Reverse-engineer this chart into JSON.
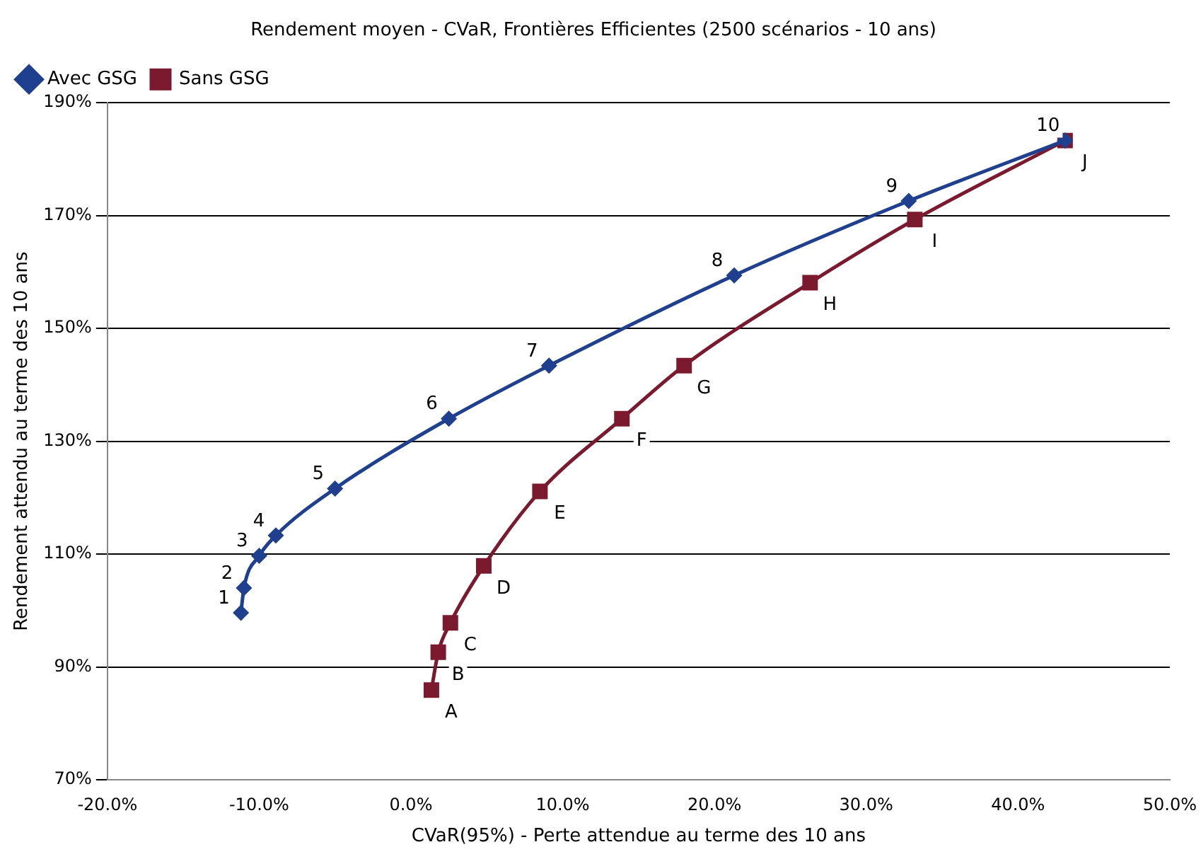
{
  "chart_data": {
    "type": "line",
    "title": "Rendement moyen - CVaR, Frontières Efficientes (2500 scénarios - 10 ans)",
    "xlabel": "CVaR(95%) - Perte attendue au terme des 10 ans",
    "ylabel": "Rendement attendu au terme des 10 ans",
    "xlim": [
      -20,
      50
    ],
    "xticks": [
      {
        "value": -20,
        "label": "-20.0%"
      },
      {
        "value": -10,
        "label": "-10.0%"
      },
      {
        "value": 0,
        "label": "0.0%"
      },
      {
        "value": 10,
        "label": "10.0%"
      },
      {
        "value": 20,
        "label": "20.0%"
      },
      {
        "value": 30,
        "label": "30.0%"
      },
      {
        "value": 40,
        "label": "40.0%"
      },
      {
        "value": 50,
        "label": "50.0%"
      }
    ],
    "ylim": [
      70,
      190
    ],
    "yticks": [
      {
        "value": 70,
        "label": "70%"
      },
      {
        "value": 90,
        "label": "90%"
      },
      {
        "value": 110,
        "label": "110%"
      },
      {
        "value": 130,
        "label": "130%"
      },
      {
        "value": 150,
        "label": "150%"
      },
      {
        "value": 170,
        "label": "170%"
      },
      {
        "value": 190,
        "label": "190%"
      }
    ],
    "annotations": [
      {
        "text": "1",
        "x": -11.2,
        "y": 99.6
      },
      {
        "text": "2",
        "x": -11.0,
        "y": 104
      },
      {
        "text": "3",
        "x": -10.0,
        "y": 109.7
      },
      {
        "text": "4",
        "x": -8.9,
        "y": 113.3
      },
      {
        "text": "5",
        "x": -5.0,
        "y": 121.6
      },
      {
        "text": "6",
        "x": 2.5,
        "y": 134
      },
      {
        "text": "7",
        "x": 9.1,
        "y": 143.4
      },
      {
        "text": "8",
        "x": 21.3,
        "y": 159.4
      },
      {
        "text": "9",
        "x": 32.8,
        "y": 172.6
      },
      {
        "text": "10",
        "x": 43.1,
        "y": 183.3
      },
      {
        "text": "A",
        "x": 1.35,
        "y": 85.9
      },
      {
        "text": "B",
        "x": 1.8,
        "y": 92.6
      },
      {
        "text": "C",
        "x": 2.6,
        "y": 97.8
      },
      {
        "text": "D",
        "x": 4.8,
        "y": 107.9
      },
      {
        "text": "E",
        "x": 8.5,
        "y": 121.1
      },
      {
        "text": "F",
        "x": 13.9,
        "y": 134
      },
      {
        "text": "G",
        "x": 18.0,
        "y": 143.4
      },
      {
        "text": "H",
        "x": 26.3,
        "y": 158.1
      },
      {
        "text": "I",
        "x": 33.2,
        "y": 169.3
      },
      {
        "text": "J",
        "x": 43.1,
        "y": 183.3
      }
    ],
    "grid": "y",
    "legend": "top left",
    "line_style": "solid",
    "series": [
      {
        "name": "Avec GSG",
        "color": "#1f3f8f",
        "marker": "diamond",
        "x": [
          -11.2,
          -11.0,
          -10.0,
          -8.9,
          -5.0,
          2.5,
          9.1,
          21.3,
          32.8,
          43.1
        ],
        "values": [
          99.6,
          104,
          109.7,
          113.3,
          121.6,
          134,
          143.4,
          159.4,
          172.6,
          183.3
        ]
      },
      {
        "name": "Sans GSG",
        "color": "#7b1a2e",
        "marker": "square",
        "x": [
          1.35,
          1.8,
          2.6,
          4.8,
          8.5,
          13.9,
          18.0,
          26.3,
          33.2,
          43.1
        ],
        "values": [
          85.9,
          92.6,
          97.8,
          107.9,
          121.1,
          134,
          143.4,
          158.1,
          169.3,
          183.3
        ]
      }
    ]
  }
}
